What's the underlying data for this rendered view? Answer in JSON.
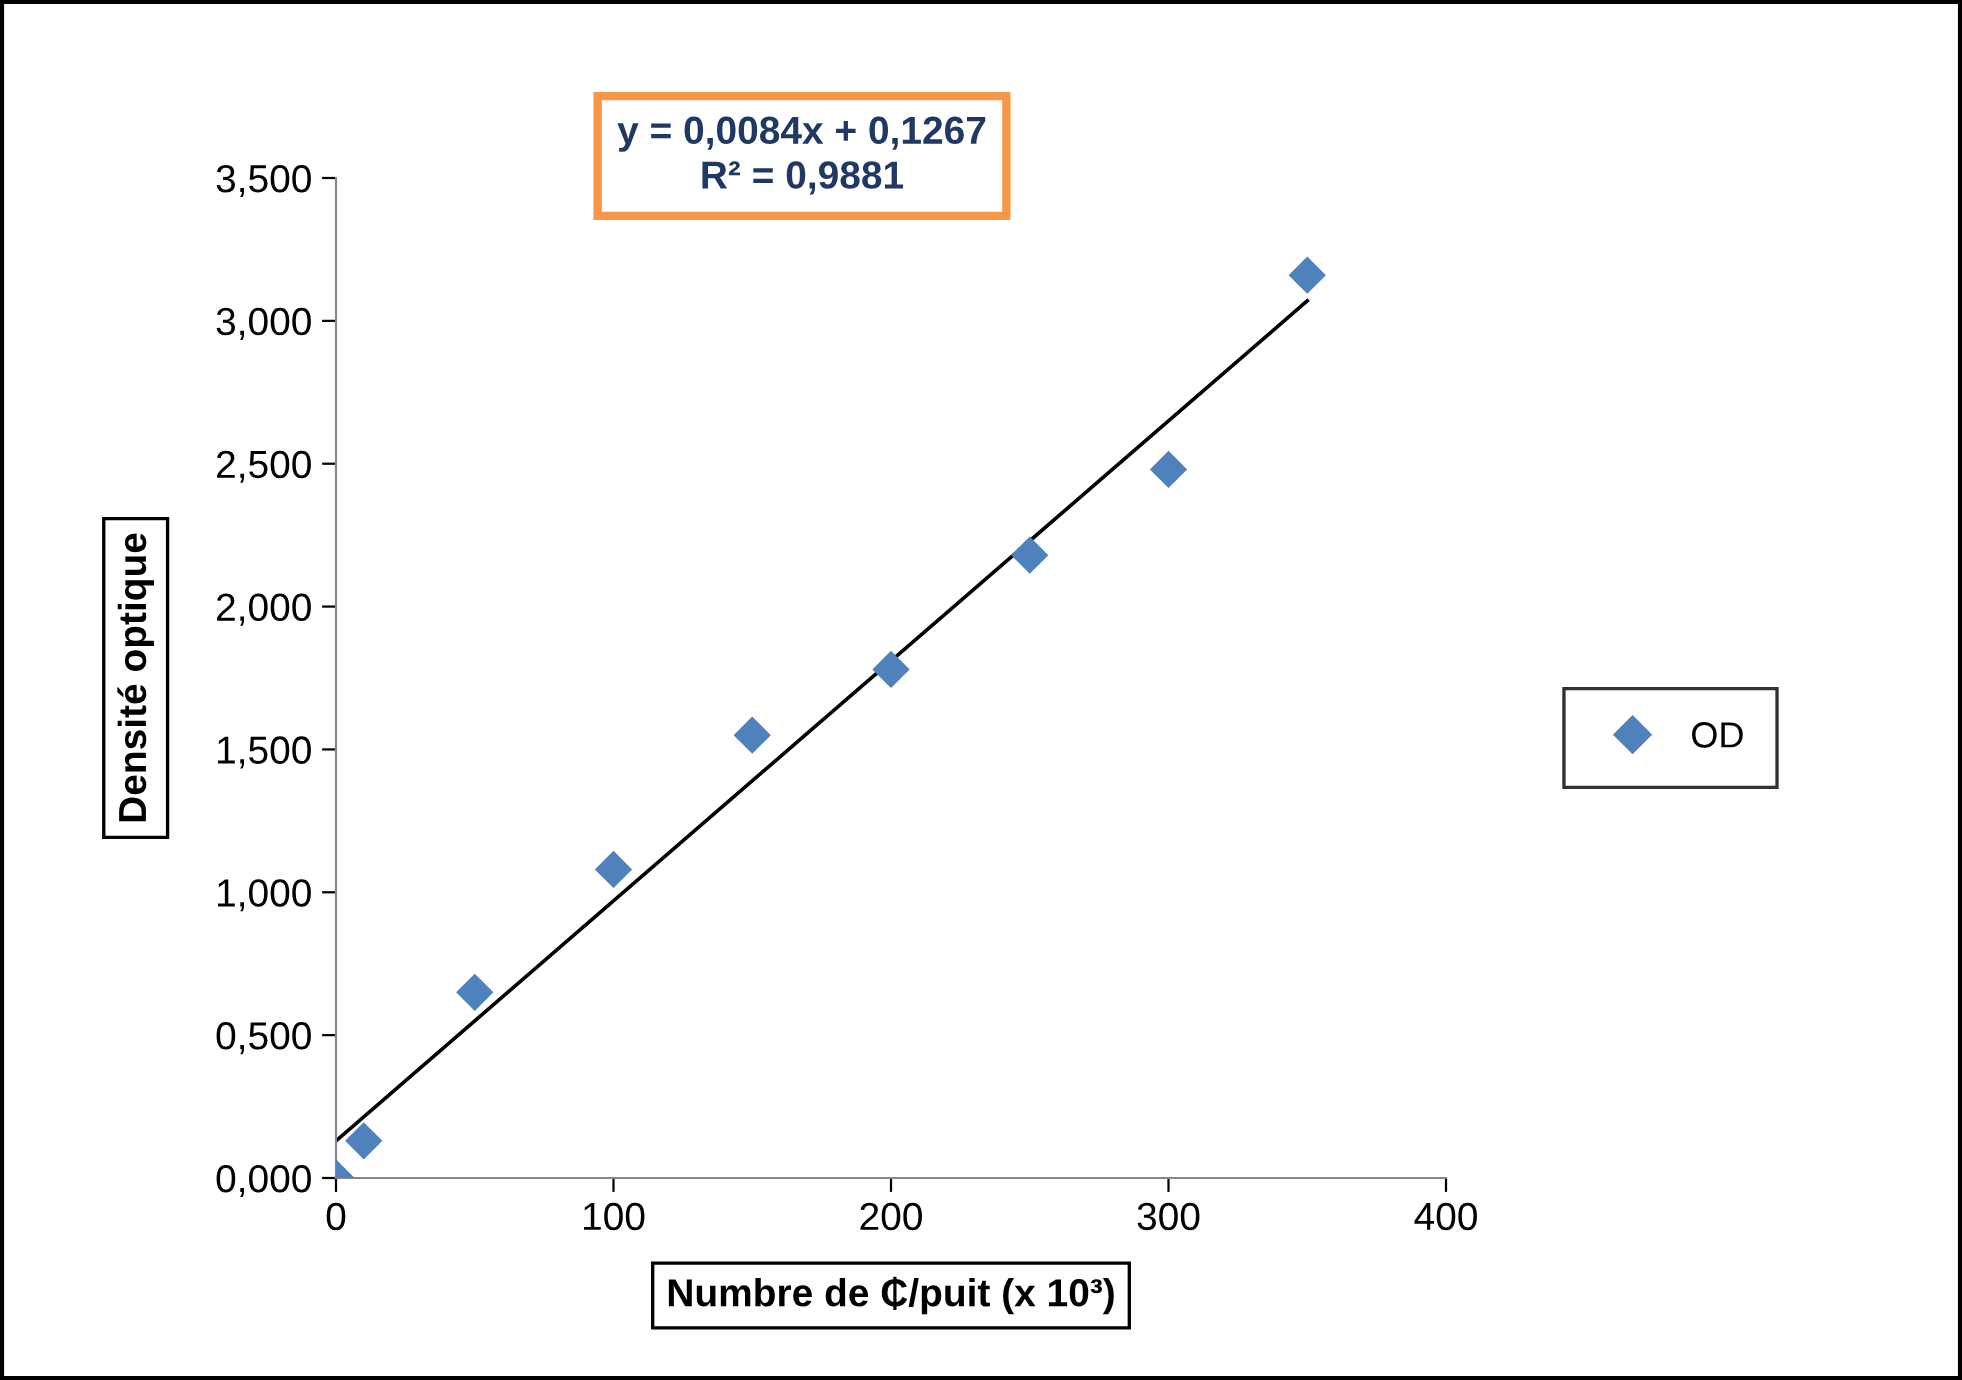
{
  "chart_data": {
    "type": "scatter",
    "xlabel": "Numbre de ₵/puit (x 10³)",
    "ylabel": "Densité optique",
    "annotations": [
      "y = 0,0084x + 0,1267\nR² = 0,9881"
    ],
    "series": [
      {
        "name": "OD",
        "color": "#4f81bd",
        "marker": "diamond",
        "x": [
          0,
          10,
          50,
          100,
          150,
          200,
          250,
          300,
          350
        ],
        "values": [
          0.0,
          0.13,
          0.65,
          1.08,
          1.55,
          1.78,
          2.18,
          2.48,
          3.16
        ]
      },
      {
        "type": "line",
        "color": "#000000",
        "marker": "none",
        "line_style": "solid",
        "x": [
          0,
          350
        ],
        "values": [
          0.13,
          3.07
        ]
      }
    ],
    "xlim": [
      0,
      400
    ],
    "xticks": [
      0,
      100,
      200,
      300,
      400
    ],
    "ylim": [
      0,
      3.5
    ],
    "yticks": [
      {
        "value": 0,
        "label": "0,000"
      },
      {
        "value": 0.5,
        "label": "0,500"
      },
      {
        "value": 1.0,
        "label": "1,000"
      },
      {
        "value": 1.5,
        "label": "1,500"
      },
      {
        "value": 2.0,
        "label": "2,000"
      },
      {
        "value": 2.5,
        "label": "2,500"
      },
      {
        "value": 3.0,
        "label": "3,000"
      },
      {
        "value": 3.5,
        "label": "3,500"
      }
    ],
    "grid": false,
    "legend": "right"
  }
}
